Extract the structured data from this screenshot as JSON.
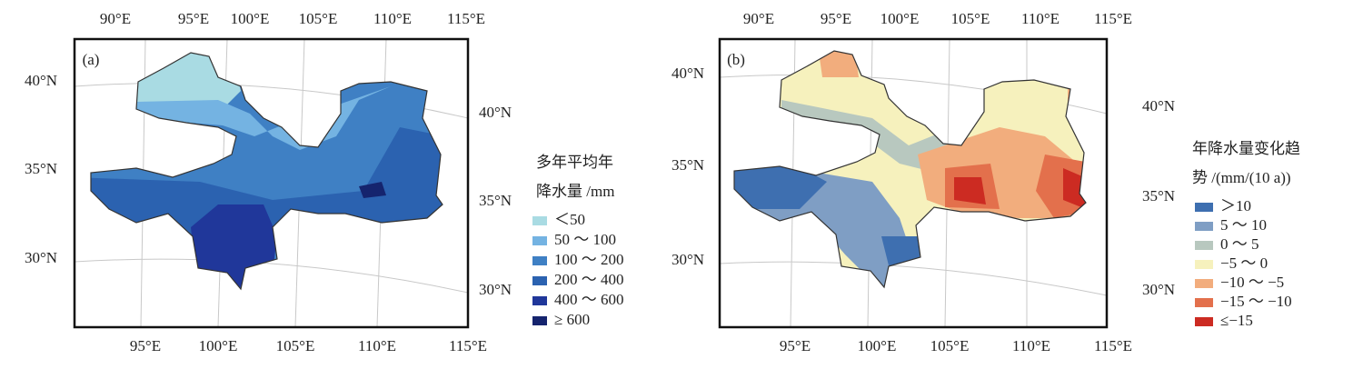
{
  "panels": [
    {
      "label": "(a)",
      "top_labels": [
        "90°E",
        "95°E",
        "100°E",
        "105°E",
        "110°E",
        "115°E"
      ],
      "bottom_labels": [
        "95°E",
        "100°E",
        "105°E",
        "110°E",
        "115°E"
      ],
      "left_labels": [
        "40°N",
        "35°N",
        "30°N"
      ],
      "right_labels": [
        "40°N",
        "35°N",
        "30°N"
      ],
      "legend": {
        "title": [
          "多年平均年",
          "降水量 /mm"
        ],
        "items": [
          {
            "label": "＜50",
            "color": "#a9dbe3"
          },
          {
            "label": "50 ～ 100",
            "color": "#74b3e2"
          },
          {
            "label": "100 ～ 200",
            "color": "#3f80c4"
          },
          {
            "label": "200 ～ 400",
            "color": "#2b62b0"
          },
          {
            "label": "400 ～ 600",
            "color": "#20379a"
          },
          {
            "label": "≥ 600",
            "color": "#15246e"
          }
        ]
      }
    },
    {
      "label": "(b)",
      "top_labels": [
        "90°E",
        "95°E",
        "100°E",
        "105°E",
        "110°E",
        "115°E"
      ],
      "bottom_labels": [
        "95°E",
        "100°E",
        "105°E",
        "110°E",
        "115°E"
      ],
      "left_labels": [
        "40°N",
        "35°N",
        "30°N"
      ],
      "right_labels": [
        "40°N",
        "35°N",
        "30°N"
      ],
      "legend": {
        "title": [
          "年降水量变化趋",
          "势 /(mm/(10 a))"
        ],
        "items": [
          {
            "label": "＞10",
            "color": "#3e6fb0"
          },
          {
            "label": "5 ～ 10",
            "color": "#7f9ec4"
          },
          {
            "label": "0 ～ 5",
            "color": "#b8c8bf"
          },
          {
            "label": "−5 ～ 0",
            "color": "#f6f1bd"
          },
          {
            "label": "−10 ～ −5",
            "color": "#f2ad7d"
          },
          {
            "label": "−15 ～ −10",
            "color": "#e3704c"
          },
          {
            "label": "≤−15",
            "color": "#cc2b22"
          }
        ]
      }
    }
  ]
}
